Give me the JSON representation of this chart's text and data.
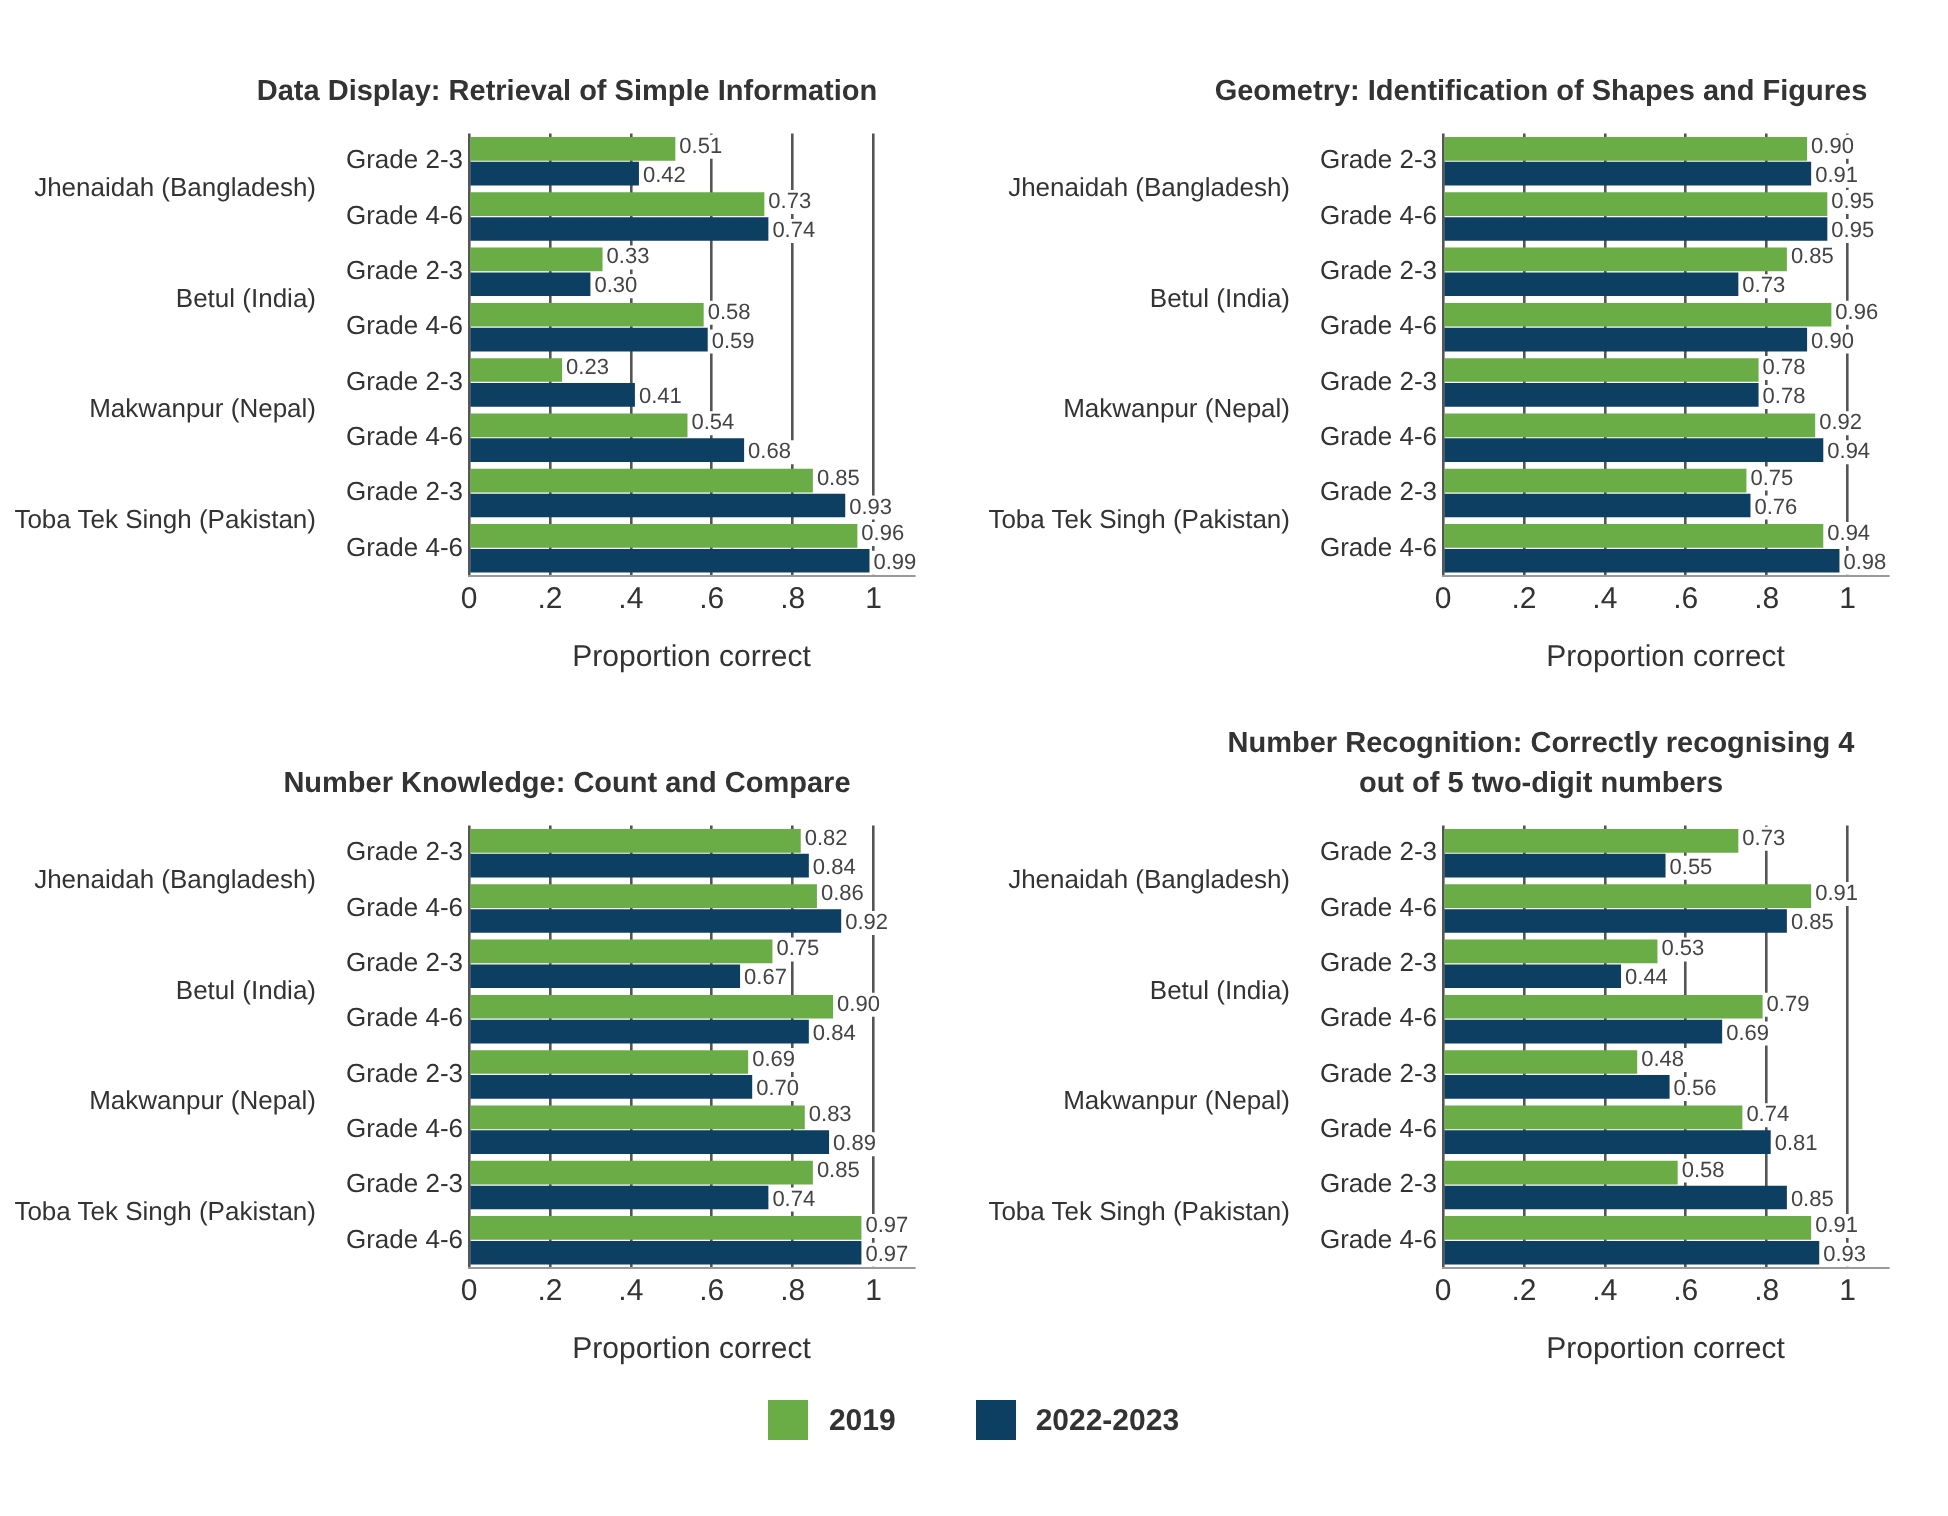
{
  "chart_data": [
    {
      "type": "bar",
      "orientation": "horizontal",
      "title": "Data Display: Retrieval of Simple Information",
      "xlabel": "Proportion correct",
      "categories": [
        "Grade 2-3",
        "Grade 4-6",
        "Grade 2-3",
        "Grade 4-6",
        "Grade 2-3",
        "Grade 4-6",
        "Grade 2-3",
        "Grade 4-6"
      ],
      "annotations": [
        "Jhenaidah (Bangladesh)",
        "Betul (India)",
        "Makwanpur (Nepal)",
        "Toba Tek Singh (Pakistan)"
      ],
      "series": [
        {
          "color": "#6aac46",
          "values": [
            0.51,
            0.73,
            0.33,
            0.58,
            0.23,
            0.54,
            0.85,
            0.96
          ],
          "value_labels": [
            "0.51",
            "0.73",
            "0.33",
            "0.58",
            "0.23",
            "0.54",
            "0.85",
            "0.96"
          ]
        },
        {
          "color": "#0c3f62",
          "values": [
            0.42,
            0.74,
            0.3,
            0.59,
            0.41,
            0.68,
            0.93,
            0.99
          ],
          "value_labels": [
            "0.42",
            "0.74",
            "0.30",
            "0.59",
            "0.41",
            "0.68",
            "0.93",
            "0.99"
          ]
        }
      ],
      "xlim": [
        0,
        1.1
      ],
      "xticks": [
        {
          "value": 0,
          "label": "0"
        },
        {
          "value": 0.2,
          "label": ".2"
        },
        {
          "value": 0.4,
          "label": ".4"
        },
        {
          "value": 0.6,
          "label": ".6"
        },
        {
          "value": 0.8,
          "label": ".8"
        },
        {
          "value": 1,
          "label": "1"
        }
      ],
      "grid": "x"
    },
    {
      "type": "bar",
      "orientation": "horizontal",
      "title": "Geometry: Identification of Shapes and Figures",
      "xlabel": "Proportion correct",
      "categories": [
        "Grade 2-3",
        "Grade 4-6",
        "Grade 2-3",
        "Grade 4-6",
        "Grade 2-3",
        "Grade 4-6",
        "Grade 2-3",
        "Grade 4-6"
      ],
      "annotations": [
        "Jhenaidah (Bangladesh)",
        "Betul (India)",
        "Makwanpur (Nepal)",
        "Toba Tek Singh (Pakistan)"
      ],
      "series": [
        {
          "color": "#6aac46",
          "values": [
            0.9,
            0.95,
            0.85,
            0.96,
            0.78,
            0.92,
            0.75,
            0.94
          ],
          "value_labels": [
            "0.90",
            "0.95",
            "0.85",
            "0.96",
            "0.78",
            "0.92",
            "0.75",
            "0.94"
          ]
        },
        {
          "color": "#0c3f62",
          "values": [
            0.91,
            0.95,
            0.73,
            0.9,
            0.78,
            0.94,
            0.76,
            0.98
          ],
          "value_labels": [
            "0.91",
            "0.95",
            "0.73",
            "0.90",
            "0.78",
            "0.94",
            "0.76",
            "0.98"
          ]
        }
      ],
      "xlim": [
        0,
        1.1
      ],
      "xticks": [
        {
          "value": 0,
          "label": "0"
        },
        {
          "value": 0.2,
          "label": ".2"
        },
        {
          "value": 0.4,
          "label": ".4"
        },
        {
          "value": 0.6,
          "label": ".6"
        },
        {
          "value": 0.8,
          "label": ".8"
        },
        {
          "value": 1,
          "label": "1"
        }
      ],
      "grid": "x"
    },
    {
      "type": "bar",
      "orientation": "horizontal",
      "title": "Number Knowledge: Count and Compare",
      "xlabel": "Proportion correct",
      "categories": [
        "Grade 2-3",
        "Grade 4-6",
        "Grade 2-3",
        "Grade 4-6",
        "Grade 2-3",
        "Grade 4-6",
        "Grade 2-3",
        "Grade 4-6"
      ],
      "annotations": [
        "Jhenaidah (Bangladesh)",
        "Betul (India)",
        "Makwanpur (Nepal)",
        "Toba Tek Singh (Pakistan)"
      ],
      "series": [
        {
          "color": "#6aac46",
          "values": [
            0.82,
            0.86,
            0.75,
            0.9,
            0.69,
            0.83,
            0.85,
            0.97
          ],
          "value_labels": [
            "0.82",
            "0.86",
            "0.75",
            "0.90",
            "0.69",
            "0.83",
            "0.85",
            "0.97"
          ]
        },
        {
          "color": "#0c3f62",
          "values": [
            0.84,
            0.92,
            0.67,
            0.84,
            0.7,
            0.89,
            0.74,
            0.97
          ],
          "value_labels": [
            "0.84",
            "0.92",
            "0.67",
            "0.84",
            "0.70",
            "0.89",
            "0.74",
            "0.97"
          ]
        }
      ],
      "xlim": [
        0,
        1.1
      ],
      "xticks": [
        {
          "value": 0,
          "label": "0"
        },
        {
          "value": 0.2,
          "label": ".2"
        },
        {
          "value": 0.4,
          "label": ".4"
        },
        {
          "value": 0.6,
          "label": ".6"
        },
        {
          "value": 0.8,
          "label": ".8"
        },
        {
          "value": 1,
          "label": "1"
        }
      ],
      "grid": "x"
    },
    {
      "type": "bar",
      "orientation": "horizontal",
      "title": "Number Recognition: Correctly recognising 4 out of 5 two-digit numbers",
      "xlabel": "Proportion correct",
      "categories": [
        "Grade 2-3",
        "Grade 4-6",
        "Grade 2-3",
        "Grade 4-6",
        "Grade 2-3",
        "Grade 4-6",
        "Grade 2-3",
        "Grade 4-6"
      ],
      "annotations": [
        "Jhenaidah (Bangladesh)",
        "Betul (India)",
        "Makwanpur (Nepal)",
        "Toba Tek Singh (Pakistan)"
      ],
      "series": [
        {
          "name": "2019",
          "color": "#6aac46",
          "values": [
            0.73,
            0.91,
            0.53,
            0.79,
            0.48,
            0.74,
            0.58,
            0.91
          ],
          "value_labels": [
            "0.73",
            "0.91",
            "0.53",
            "0.79",
            "0.48",
            "0.74",
            "0.58",
            "0.91"
          ]
        },
        {
          "name": "2022-2023",
          "color": "#0c3f62",
          "values": [
            0.55,
            0.85,
            0.44,
            0.69,
            0.56,
            0.81,
            0.85,
            0.93
          ],
          "value_labels": [
            "0.55",
            "0.85",
            "0.44",
            "0.69",
            "0.56",
            "0.81",
            "0.85",
            "0.93"
          ]
        }
      ],
      "xlim": [
        0,
        1.1
      ],
      "xticks": [
        {
          "value": 0,
          "label": "0"
        },
        {
          "value": 0.2,
          "label": ".2"
        },
        {
          "value": 0.4,
          "label": ".4"
        },
        {
          "value": 0.6,
          "label": ".6"
        },
        {
          "value": 0.8,
          "label": ".8"
        },
        {
          "value": 1,
          "label": "1"
        }
      ],
      "grid": "x",
      "legend": "bottom"
    }
  ]
}
